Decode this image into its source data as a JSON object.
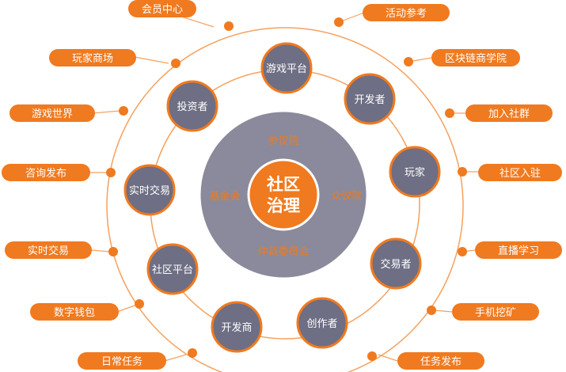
{
  "colors": {
    "orange": "#F07A1F",
    "orange_light": "#F5A15E",
    "slate": "#6E6E84",
    "slate_dark": "#5E5E73",
    "center_ring": "#8A8A9C",
    "white": "#FFFFFF"
  },
  "center": {
    "title_line1": "社区",
    "title_line2": "治理"
  },
  "governance_ring": [
    {
      "id": "top",
      "label": "参议院"
    },
    {
      "id": "left",
      "label": "基金会"
    },
    {
      "id": "right",
      "label": "众议院"
    },
    {
      "id": "bottom",
      "label": "仲裁委员会"
    }
  ],
  "roles": [
    {
      "id": "game-platform",
      "label": "游戏平台"
    },
    {
      "id": "developer-top",
      "label": "开发者"
    },
    {
      "id": "player",
      "label": "玩家"
    },
    {
      "id": "trader",
      "label": "交易者"
    },
    {
      "id": "creator",
      "label": "创作者"
    },
    {
      "id": "developer-business",
      "label": "开发商"
    },
    {
      "id": "community-platform",
      "label": "社区平台"
    },
    {
      "id": "realtime-trading-inner",
      "label": "实时交易"
    },
    {
      "id": "investor",
      "label": "投资者"
    }
  ],
  "left_pills": [
    {
      "id": "member-center",
      "label": "会员中心"
    },
    {
      "id": "player-mall",
      "label": "玩家商场"
    },
    {
      "id": "game-world",
      "label": "游戏世界"
    },
    {
      "id": "consult-publish",
      "label": "咨询发布"
    },
    {
      "id": "realtime-trading",
      "label": "实时交易"
    },
    {
      "id": "digital-wallet",
      "label": "数字钱包"
    },
    {
      "id": "daily-tasks",
      "label": "日常任务"
    }
  ],
  "right_pills": [
    {
      "id": "event-reference",
      "label": "活动参考"
    },
    {
      "id": "blockchain-academy",
      "label": "区块链商学院"
    },
    {
      "id": "join-community",
      "label": "加入社群"
    },
    {
      "id": "community-onboard",
      "label": "社区入驻"
    },
    {
      "id": "live-learning",
      "label": "直播学习"
    },
    {
      "id": "mobile-mining",
      "label": "手机挖矿"
    },
    {
      "id": "task-publish",
      "label": "任务发布"
    }
  ]
}
